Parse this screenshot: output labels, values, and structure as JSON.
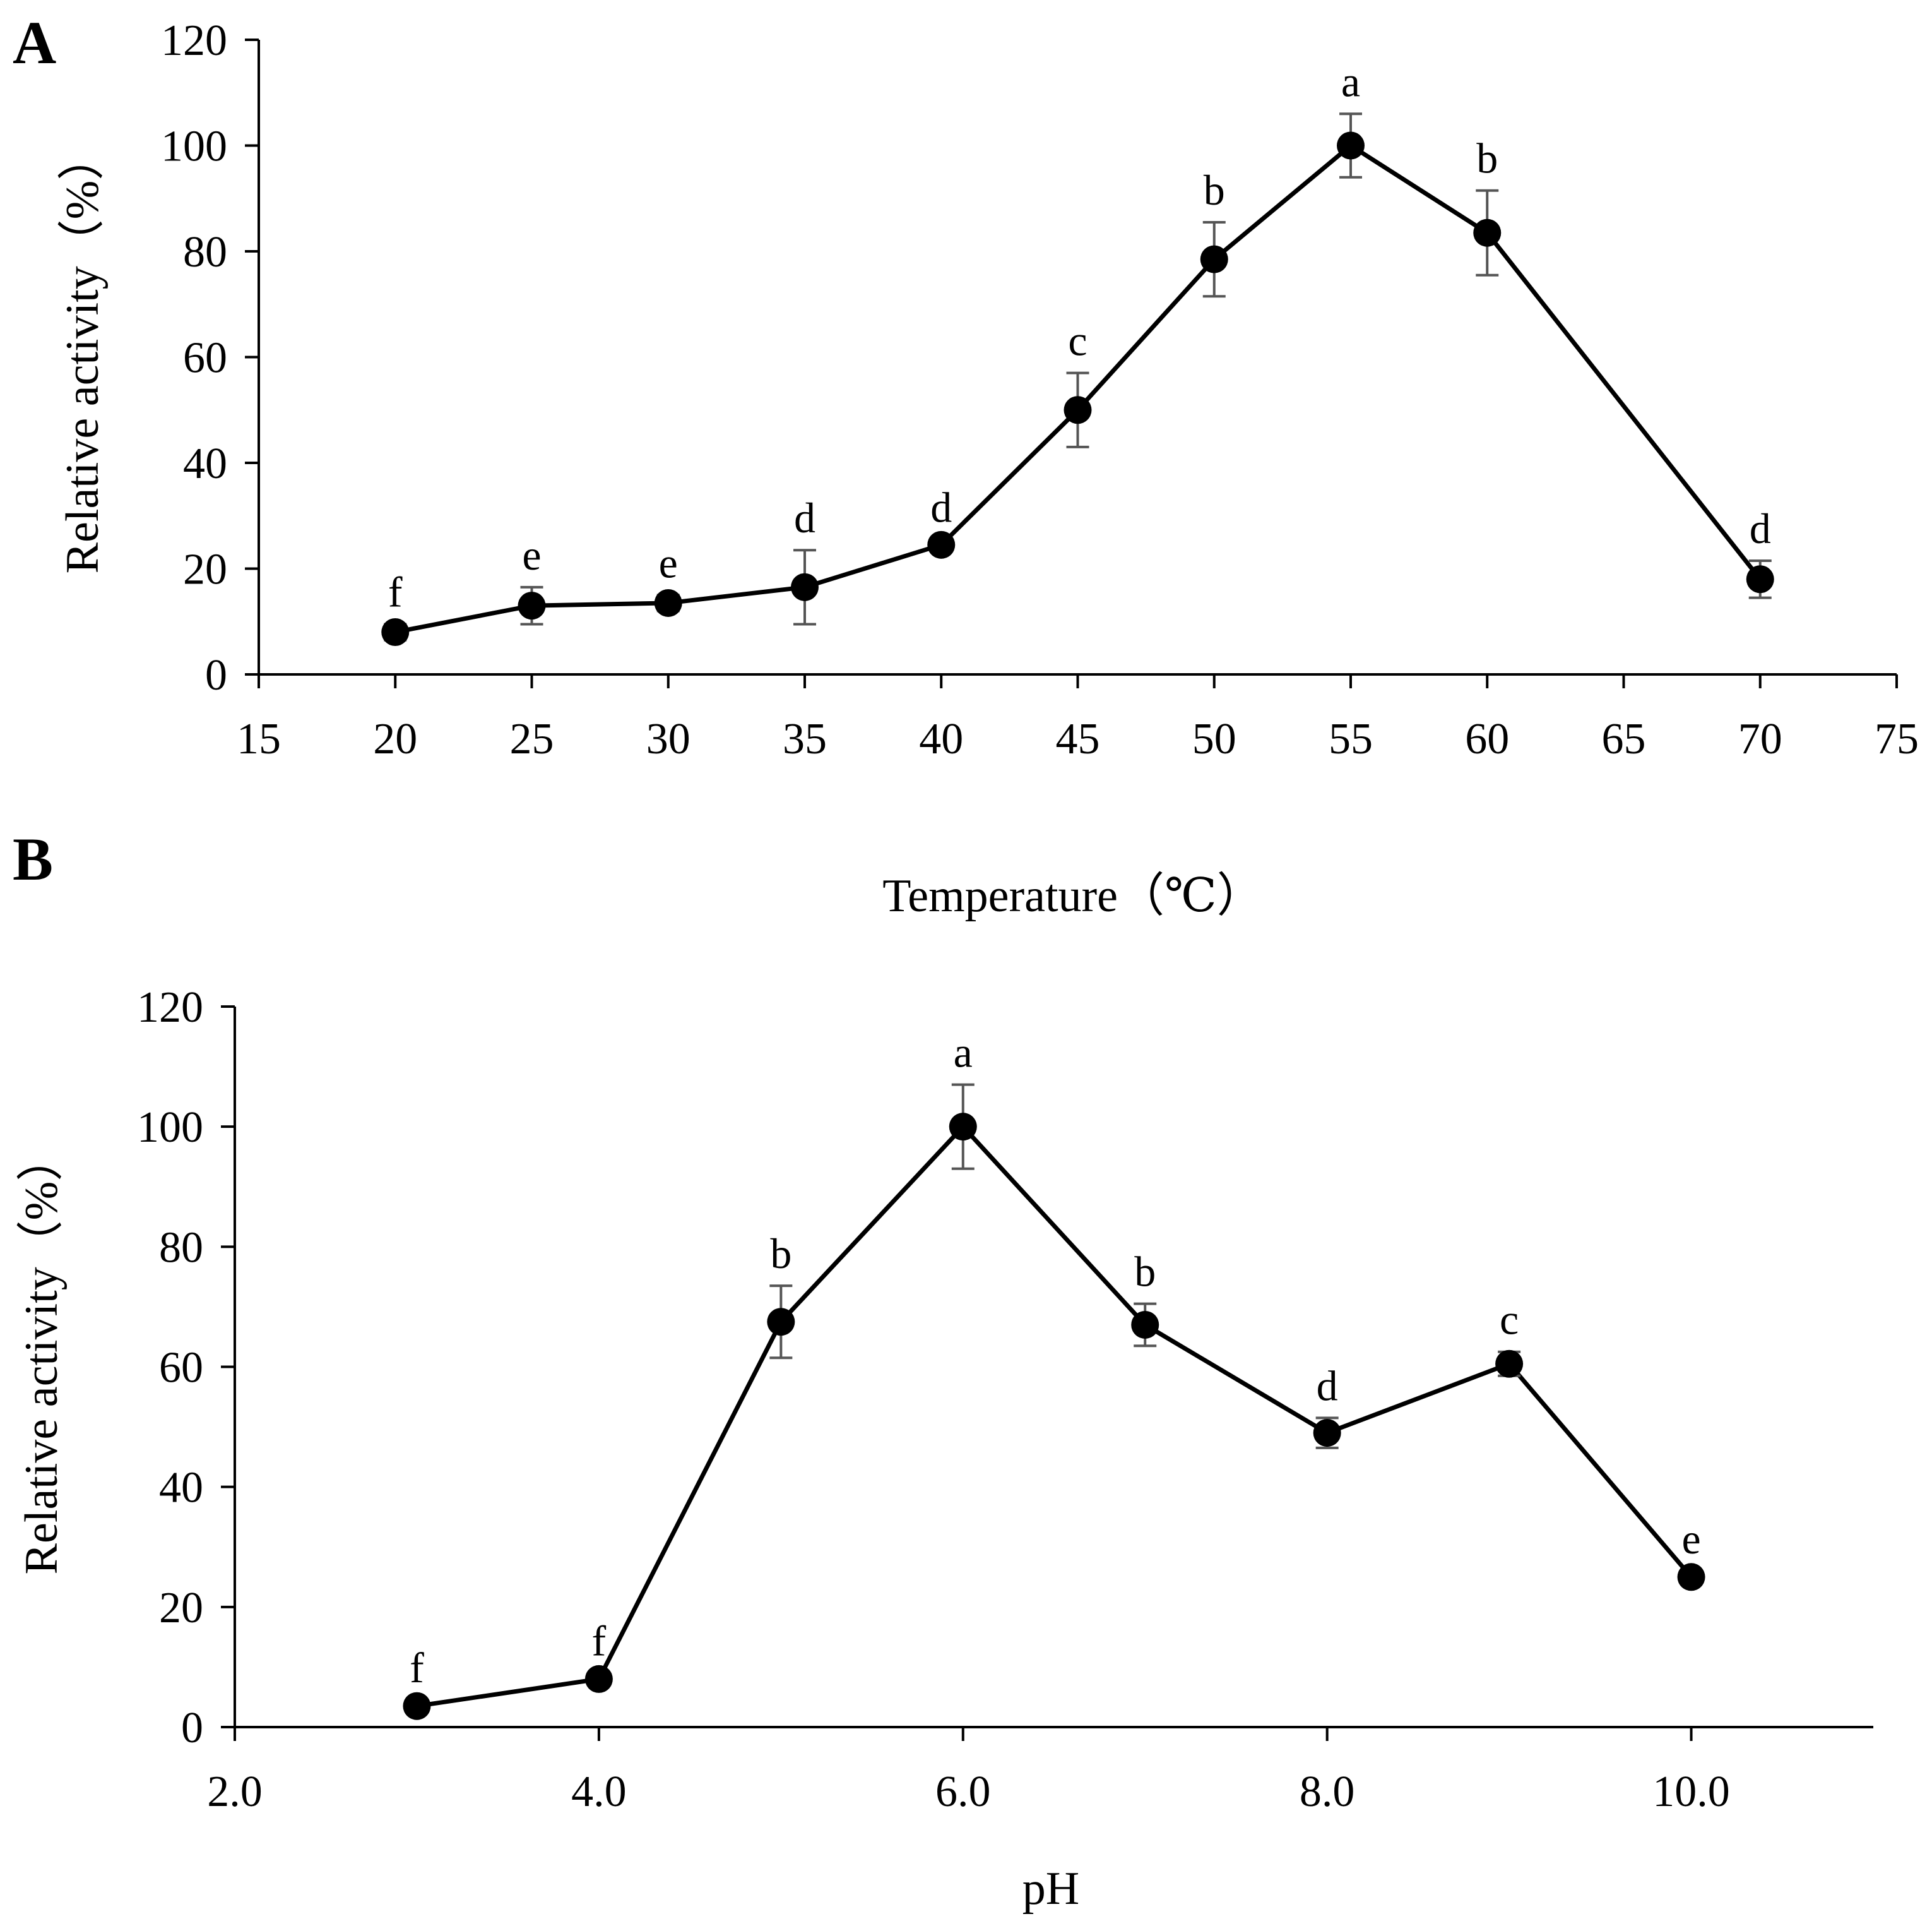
{
  "chart_data": [
    {
      "panel": "A",
      "type": "line",
      "xlabel": "Temperature（℃）",
      "ylabel": "Relative activity（%）",
      "xlim": [
        15,
        75
      ],
      "ylim": [
        0,
        120
      ],
      "xticks": [
        "15",
        "20",
        "25",
        "30",
        "35",
        "40",
        "45",
        "50",
        "55",
        "60",
        "65",
        "70",
        "75"
      ],
      "yticks": [
        "0",
        "20",
        "40",
        "60",
        "80",
        "100",
        "120"
      ],
      "x": [
        20,
        25,
        30,
        35,
        40,
        45,
        50,
        55,
        60,
        70
      ],
      "values": [
        8,
        13,
        13.5,
        16.5,
        24.5,
        50,
        78.5,
        100,
        83.5,
        18
      ],
      "errors": [
        1.5,
        3.5,
        1.5,
        7,
        1,
        7,
        7,
        6,
        8,
        3.5
      ],
      "significance": [
        "f",
        "e",
        "e",
        "d",
        "d",
        "c",
        "b",
        "a",
        "b",
        "d"
      ]
    },
    {
      "panel": "B",
      "type": "line",
      "xlabel": "pH",
      "ylabel": "Relative activity（%）",
      "xlim": [
        2.0,
        11.0
      ],
      "ylim": [
        0,
        120
      ],
      "xticks": [
        "2.0",
        "4.0",
        "6.0",
        "8.0",
        "10.0"
      ],
      "yticks": [
        "0",
        "20",
        "40",
        "60",
        "80",
        "100",
        "120"
      ],
      "x": [
        3,
        4,
        5,
        6,
        7,
        8,
        9,
        10
      ],
      "values": [
        3.5,
        8,
        67.5,
        100,
        67,
        49,
        60.5,
        25
      ],
      "errors": [
        1,
        1,
        6,
        7,
        3.5,
        2.5,
        2,
        1
      ],
      "significance": [
        "f",
        "f",
        "b",
        "a",
        "b",
        "d",
        "c",
        "e"
      ]
    }
  ]
}
